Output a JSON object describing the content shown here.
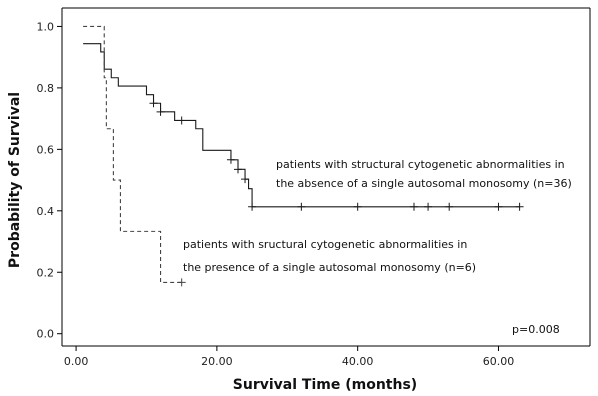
{
  "chart_data": {
    "type": "line",
    "xlabel": "Survival Time (months)",
    "ylabel": "Probability of Survival",
    "xlim": [
      -2,
      73
    ],
    "ylim": [
      -0.04,
      1.06
    ],
    "xticks": [
      0,
      20,
      40,
      60
    ],
    "xtick_labels": [
      "0.00",
      "20.00",
      "40.00",
      "60.00"
    ],
    "yticks": [
      0,
      0.2,
      0.4,
      0.6,
      0.8,
      1.0
    ],
    "ytick_labels": [
      "0.0",
      "0.2",
      "0.4",
      "0.6",
      "0.8",
      "1.0"
    ],
    "grid": false,
    "series": [
      {
        "name": "patients with structural cytogenetic abnormalities in the absence of a single autosomal monosomy (n=36)",
        "style": "solid",
        "color": "#1a1a1a",
        "steps": [
          [
            1,
            0.944
          ],
          [
            3.5,
            0.917
          ],
          [
            4,
            0.861
          ],
          [
            5,
            0.833
          ],
          [
            6,
            0.806
          ],
          [
            10,
            0.778
          ],
          [
            11,
            0.75
          ],
          [
            12,
            0.722
          ],
          [
            14,
            0.694
          ],
          [
            17,
            0.667
          ],
          [
            18,
            0.597
          ],
          [
            22,
            0.566
          ],
          [
            23,
            0.535
          ],
          [
            24,
            0.503
          ],
          [
            24.5,
            0.472
          ],
          [
            25,
            0.413
          ],
          [
            63,
            0.413
          ]
        ],
        "censored": [
          [
            11,
            0.75
          ],
          [
            12,
            0.722
          ],
          [
            15,
            0.694
          ],
          [
            22,
            0.566
          ],
          [
            23,
            0.535
          ],
          [
            24,
            0.503
          ],
          [
            25,
            0.413
          ],
          [
            32,
            0.413
          ],
          [
            40,
            0.413
          ],
          [
            48,
            0.413
          ],
          [
            50,
            0.413
          ],
          [
            53,
            0.413
          ],
          [
            60,
            0.413
          ],
          [
            63,
            0.413
          ]
        ]
      },
      {
        "name": "patients with sructural cytogenetic abnormalities in the presence of a single autosomal monosomy (n=6)",
        "style": "dashed",
        "color": "#444444",
        "steps": [
          [
            1,
            1.0
          ],
          [
            4,
            0.833
          ],
          [
            4.3,
            0.667
          ],
          [
            5.3,
            0.5
          ],
          [
            6.3,
            0.333
          ],
          [
            12,
            0.167
          ],
          [
            15,
            0.167
          ]
        ],
        "censored": [
          [
            15,
            0.167
          ]
        ]
      }
    ],
    "annotations": {
      "solid_line1": "patients with  structural cytogenetic abnormalities in",
      "solid_line2": "the absence of a single autosomal monosomy (n=36)",
      "dashed_line1": "patients with sructural cytogenetic abnormalities in",
      "dashed_line2": "the presence of a single autosomal monosomy (n=6)",
      "p_value": "p=0.008"
    }
  }
}
